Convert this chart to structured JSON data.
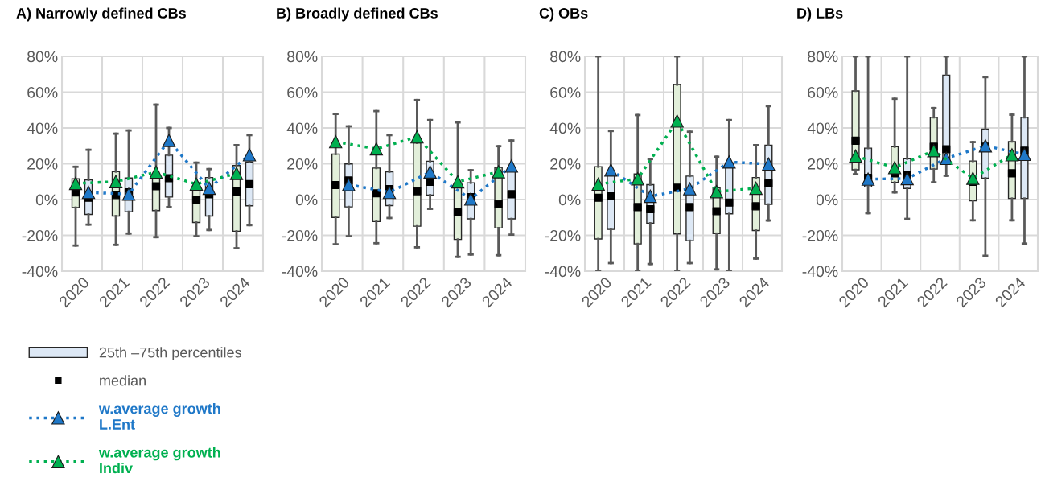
{
  "chart_data": [
    {
      "type": "box",
      "title": "A) Narrowly defined CBs",
      "categories": [
        "2020",
        "2021",
        "2022",
        "2023",
        "2024"
      ],
      "ylim": [
        -40,
        80
      ],
      "yticks": [
        {
          "value": -40,
          "label": "-40%"
        },
        {
          "value": -20,
          "label": "-20%"
        },
        {
          "value": 0,
          "label": "0%"
        },
        {
          "value": 20,
          "label": "20%"
        },
        {
          "value": 40,
          "label": "40%"
        },
        {
          "value": 60,
          "label": "60%"
        },
        {
          "value": 80,
          "label": "80%"
        }
      ],
      "grid": true,
      "legend": "bottom left",
      "annotations": [
        "25th –75th percentiles",
        "median"
      ],
      "series": [
        {
          "color": "#e2efda",
          "boxes": [
            {
              "low": -25.7,
              "q1": -4.5,
              "median": 4,
              "q3": 11.6,
              "high": 18.3
            },
            {
              "low": -25.3,
              "q1": -9.2,
              "median": 2.5,
              "q3": 15.6,
              "high": 36.8
            },
            {
              "low": -21,
              "q1": -6.2,
              "median": 7.4,
              "q3": 13,
              "high": 53
            },
            {
              "low": -20.5,
              "q1": -12.8,
              "median": 0,
              "q3": 7.4,
              "high": 20.6
            },
            {
              "low": -27.2,
              "q1": -17.7,
              "median": 4.5,
              "q3": 19,
              "high": 30.4
            }
          ]
        },
        {
          "color": "#dde8f5",
          "boxes": [
            {
              "low": -14,
              "q1": -8.3,
              "median": 1,
              "q3": 11,
              "high": 27.8
            },
            {
              "low": -19,
              "q1": -6.8,
              "median": 4,
              "q3": 12,
              "high": 38.6
            },
            {
              "low": -4.2,
              "q1": 1.4,
              "median": 11.9,
              "q3": 24.8,
              "high": 40
            },
            {
              "low": -17,
              "q1": -9.2,
              "median": 3,
              "q3": 12.3,
              "high": 17
            },
            {
              "low": -14.3,
              "q1": -3.5,
              "median": 8.6,
              "q3": 21,
              "high": 36
            }
          ]
        },
        {
          "type": "line",
          "name": "w.average growth L.Ent",
          "color": "#1f78c8",
          "marker": "triangle",
          "line_style": "dotted",
          "values": [
            4,
            3,
            33,
            6.3,
            25
          ]
        },
        {
          "type": "line",
          "name": "w.average growth Indiv",
          "color": "#00b050",
          "marker": "triangle",
          "line_style": "dotted",
          "values": [
            9,
            10,
            15.3,
            8.6,
            14.6
          ]
        }
      ]
    },
    {
      "type": "box",
      "title": "B) Broadly defined CBs",
      "categories": [
        "2020",
        "2021",
        "2022",
        "2023",
        "2024"
      ],
      "ylim": [
        -40,
        80
      ],
      "yticks": [
        {
          "value": -40,
          "label": "-40%"
        },
        {
          "value": -20,
          "label": "-20%"
        },
        {
          "value": 0,
          "label": "0%"
        },
        {
          "value": 20,
          "label": "20%"
        },
        {
          "value": 40,
          "label": "40%"
        },
        {
          "value": 60,
          "label": "60%"
        },
        {
          "value": 80,
          "label": "80%"
        }
      ],
      "grid": true,
      "series": [
        {
          "color": "#e2efda",
          "boxes": [
            {
              "low": -25,
              "q1": -10,
              "median": 8.1,
              "q3": 25.4,
              "high": 47.8
            },
            {
              "low": -24.4,
              "q1": -12.3,
              "median": 3.5,
              "q3": 17.6,
              "high": 49.4
            },
            {
              "low": -26.7,
              "q1": -14.9,
              "median": 4.7,
              "q3": 31.7,
              "high": 55.6
            },
            {
              "low": -32,
              "q1": -22.3,
              "median": -7.2,
              "q3": 6.9,
              "high": 43.1
            },
            {
              "low": -31.1,
              "q1": -15.9,
              "median": -2.5,
              "q3": 18,
              "high": 29.8
            }
          ]
        },
        {
          "color": "#dde8f5",
          "boxes": [
            {
              "low": -20.5,
              "q1": -4.1,
              "median": 10.6,
              "q3": 19.9,
              "high": 40.9
            },
            {
              "low": -10.3,
              "q1": -3.4,
              "median": 5.8,
              "q3": 15.5,
              "high": 36
            },
            {
              "low": -5.2,
              "q1": 2.5,
              "median": 9.9,
              "q3": 21.4,
              "high": 44.4
            },
            {
              "low": -30.7,
              "q1": -10.8,
              "median": 1.3,
              "q3": 9.3,
              "high": 16.4
            },
            {
              "low": -19.6,
              "q1": -10.8,
              "median": 3,
              "q3": 18,
              "high": 33
            }
          ]
        },
        {
          "type": "line",
          "color": "#1f78c8",
          "marker": "triangle",
          "line_style": "dotted",
          "values": [
            8.4,
            4,
            15.4,
            0.3,
            18.7
          ]
        },
        {
          "type": "line",
          "color": "#00b050",
          "marker": "triangle",
          "line_style": "dotted",
          "values": [
            32.3,
            28.3,
            35,
            9.9,
            15.5
          ]
        }
      ]
    },
    {
      "type": "box",
      "title": "C) OBs",
      "categories": [
        "2020",
        "2021",
        "2022",
        "2023",
        "2024"
      ],
      "ylim": [
        -40,
        80
      ],
      "yticks": [
        {
          "value": -40,
          "label": "-40%"
        },
        {
          "value": -20,
          "label": "-20%"
        },
        {
          "value": 0,
          "label": "0%"
        },
        {
          "value": 20,
          "label": "20%"
        },
        {
          "value": 40,
          "label": "40%"
        },
        {
          "value": 60,
          "label": "60%"
        },
        {
          "value": 80,
          "label": "80%"
        }
      ],
      "grid": true,
      "series": [
        {
          "color": "#e2efda",
          "boxes": [
            {
              "low": -40,
              "q1": -22,
              "median": 1,
              "q3": 18.3,
              "high": 80
            },
            {
              "low": -40,
              "q1": -24.8,
              "median": -4.2,
              "q3": 14.3,
              "high": 47.2
            },
            {
              "low": -40,
              "q1": -19.2,
              "median": 6.6,
              "q3": 64.2,
              "high": 80
            },
            {
              "low": -39,
              "q1": -19,
              "median": -6.5,
              "q3": 6.6,
              "high": 23.9
            },
            {
              "low": -33,
              "q1": -17.3,
              "median": -3.8,
              "q3": 12.3,
              "high": 30.4
            }
          ]
        },
        {
          "color": "#dde8f5",
          "boxes": [
            {
              "low": -35.5,
              "q1": -16.7,
              "median": 1.8,
              "q3": 15.3,
              "high": 38.3
            },
            {
              "low": -36,
              "q1": -13.2,
              "median": -5.4,
              "q3": 8.3,
              "high": 22.6
            },
            {
              "low": -35.5,
              "q1": -23,
              "median": -4.2,
              "q3": 13.1,
              "high": 37.9
            },
            {
              "low": -40,
              "q1": -8,
              "median": -1.7,
              "q3": 20.6,
              "high": 44.4
            },
            {
              "low": -11.7,
              "q1": -2.7,
              "median": 9,
              "q3": 30.4,
              "high": 52.2
            }
          ]
        },
        {
          "type": "line",
          "color": "#1f78c8",
          "marker": "triangle",
          "line_style": "dotted",
          "values": [
            16.5,
            1.8,
            6,
            21,
            19.8
          ]
        },
        {
          "type": "line",
          "color": "#00b050",
          "marker": "triangle",
          "line_style": "dotted",
          "values": [
            8.6,
            11.6,
            43.9,
            4.4,
            6.3
          ]
        }
      ]
    },
    {
      "type": "box",
      "title": "D) LBs",
      "categories": [
        "2020",
        "2021",
        "2022",
        "2023",
        "2024"
      ],
      "ylim": [
        -40,
        80
      ],
      "yticks": [
        {
          "value": -40,
          "label": "-40%"
        },
        {
          "value": -20,
          "label": "-20%"
        },
        {
          "value": 0,
          "label": "0%"
        },
        {
          "value": 20,
          "label": "20%"
        },
        {
          "value": 40,
          "label": "40%"
        },
        {
          "value": 60,
          "label": "60%"
        },
        {
          "value": 80,
          "label": "80%"
        }
      ],
      "grid": true,
      "series": [
        {
          "color": "#e2efda",
          "boxes": [
            {
              "low": 14.1,
              "q1": 16.6,
              "median": 32.9,
              "q3": 60.7,
              "high": 80
            },
            {
              "low": 4,
              "q1": 9.6,
              "median": 14.7,
              "q3": 29.5,
              "high": 56.3
            },
            {
              "low": 9.6,
              "q1": 17,
              "median": 29.5,
              "q3": 45.9,
              "high": 51.1
            },
            {
              "low": -11.6,
              "q1": -0.7,
              "median": 9.9,
              "q3": 21.5,
              "high": 32.1
            },
            {
              "low": -11.6,
              "q1": 0.6,
              "median": 14.7,
              "q3": 32.4,
              "high": 47.4
            }
          ]
        },
        {
          "color": "#dde8f5",
          "boxes": [
            {
              "low": -7.6,
              "q1": 7,
              "median": 12.1,
              "q3": 28.7,
              "high": 80
            },
            {
              "low": -10.8,
              "q1": 6.2,
              "median": 13.6,
              "q3": 22.8,
              "high": 80
            },
            {
              "low": 13.3,
              "q1": 20.6,
              "median": 28.1,
              "q3": 69.5,
              "high": 80
            },
            {
              "low": -31.4,
              "q1": 11.9,
              "median": 29.5,
              "q3": 39.3,
              "high": 68.4
            },
            {
              "low": -24.6,
              "q1": 0.6,
              "median": 27.3,
              "q3": 45.9,
              "high": 80
            }
          ]
        },
        {
          "type": "line",
          "color": "#1f78c8",
          "marker": "triangle",
          "line_style": "dotted",
          "values": [
            11.4,
            11.7,
            23,
            30,
            25.2
          ]
        },
        {
          "type": "line",
          "color": "#00b050",
          "marker": "triangle",
          "line_style": "dotted",
          "values": [
            24.3,
            17.8,
            27.3,
            11.9,
            25
          ]
        }
      ]
    }
  ]
}
